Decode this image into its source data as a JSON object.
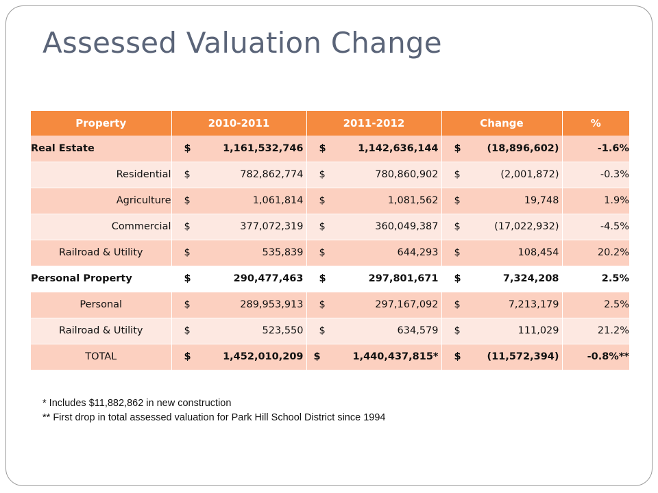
{
  "title": "Assessed Valuation Change",
  "table": {
    "headers": [
      "Property",
      "2010-2011",
      "2011-2012",
      "Change",
      "%"
    ],
    "currency_symbol": "$",
    "rows": [
      {
        "label": "Real Estate",
        "v2010": "1,161,532,746",
        "v2011": "1,142,636,144",
        "change": "(18,896,602)",
        "pct": "-1.6%"
      },
      {
        "label": "Residential",
        "v2010": "782,862,774",
        "v2011": "780,860,902",
        "change": "(2,001,872)",
        "pct": "-0.3%"
      },
      {
        "label": "Agriculture",
        "v2010": "1,061,814",
        "v2011": "1,081,562",
        "change": "19,748",
        "pct": "1.9%"
      },
      {
        "label": "Commercial",
        "v2010": "377,072,319",
        "v2011": "360,049,387",
        "change": "(17,022,932)",
        "pct": "-4.5%"
      },
      {
        "label": "Railroad & Utility",
        "v2010": "535,839",
        "v2011": "644,293",
        "change": "108,454",
        "pct": "20.2%"
      },
      {
        "label": "Personal Property",
        "v2010": "290,477,463",
        "v2011": "297,801,671",
        "change": "7,324,208",
        "pct": "2.5%"
      },
      {
        "label": "Personal",
        "v2010": "289,953,913",
        "v2011": "297,167,092",
        "change": "7,213,179",
        "pct": "2.5%"
      },
      {
        "label": "Railroad & Utility",
        "v2010": "523,550",
        "v2011": "634,579",
        "change": "111,029",
        "pct": "21.2%"
      },
      {
        "label": "TOTAL",
        "v2010": "1,452,010,209",
        "v2011": "1,440,437,815*",
        "change": "(11,572,394)",
        "pct": "-0.8%**"
      }
    ]
  },
  "footnotes": [
    "* Includes $11,882,862 in new construction",
    "** First drop in total assessed valuation for Park Hill School District since 1994"
  ],
  "colors": {
    "header_bg": "#f58a3f",
    "row_dark": "#fcd0c0",
    "row_light": "#fde8e1",
    "title": "#5a6478"
  }
}
